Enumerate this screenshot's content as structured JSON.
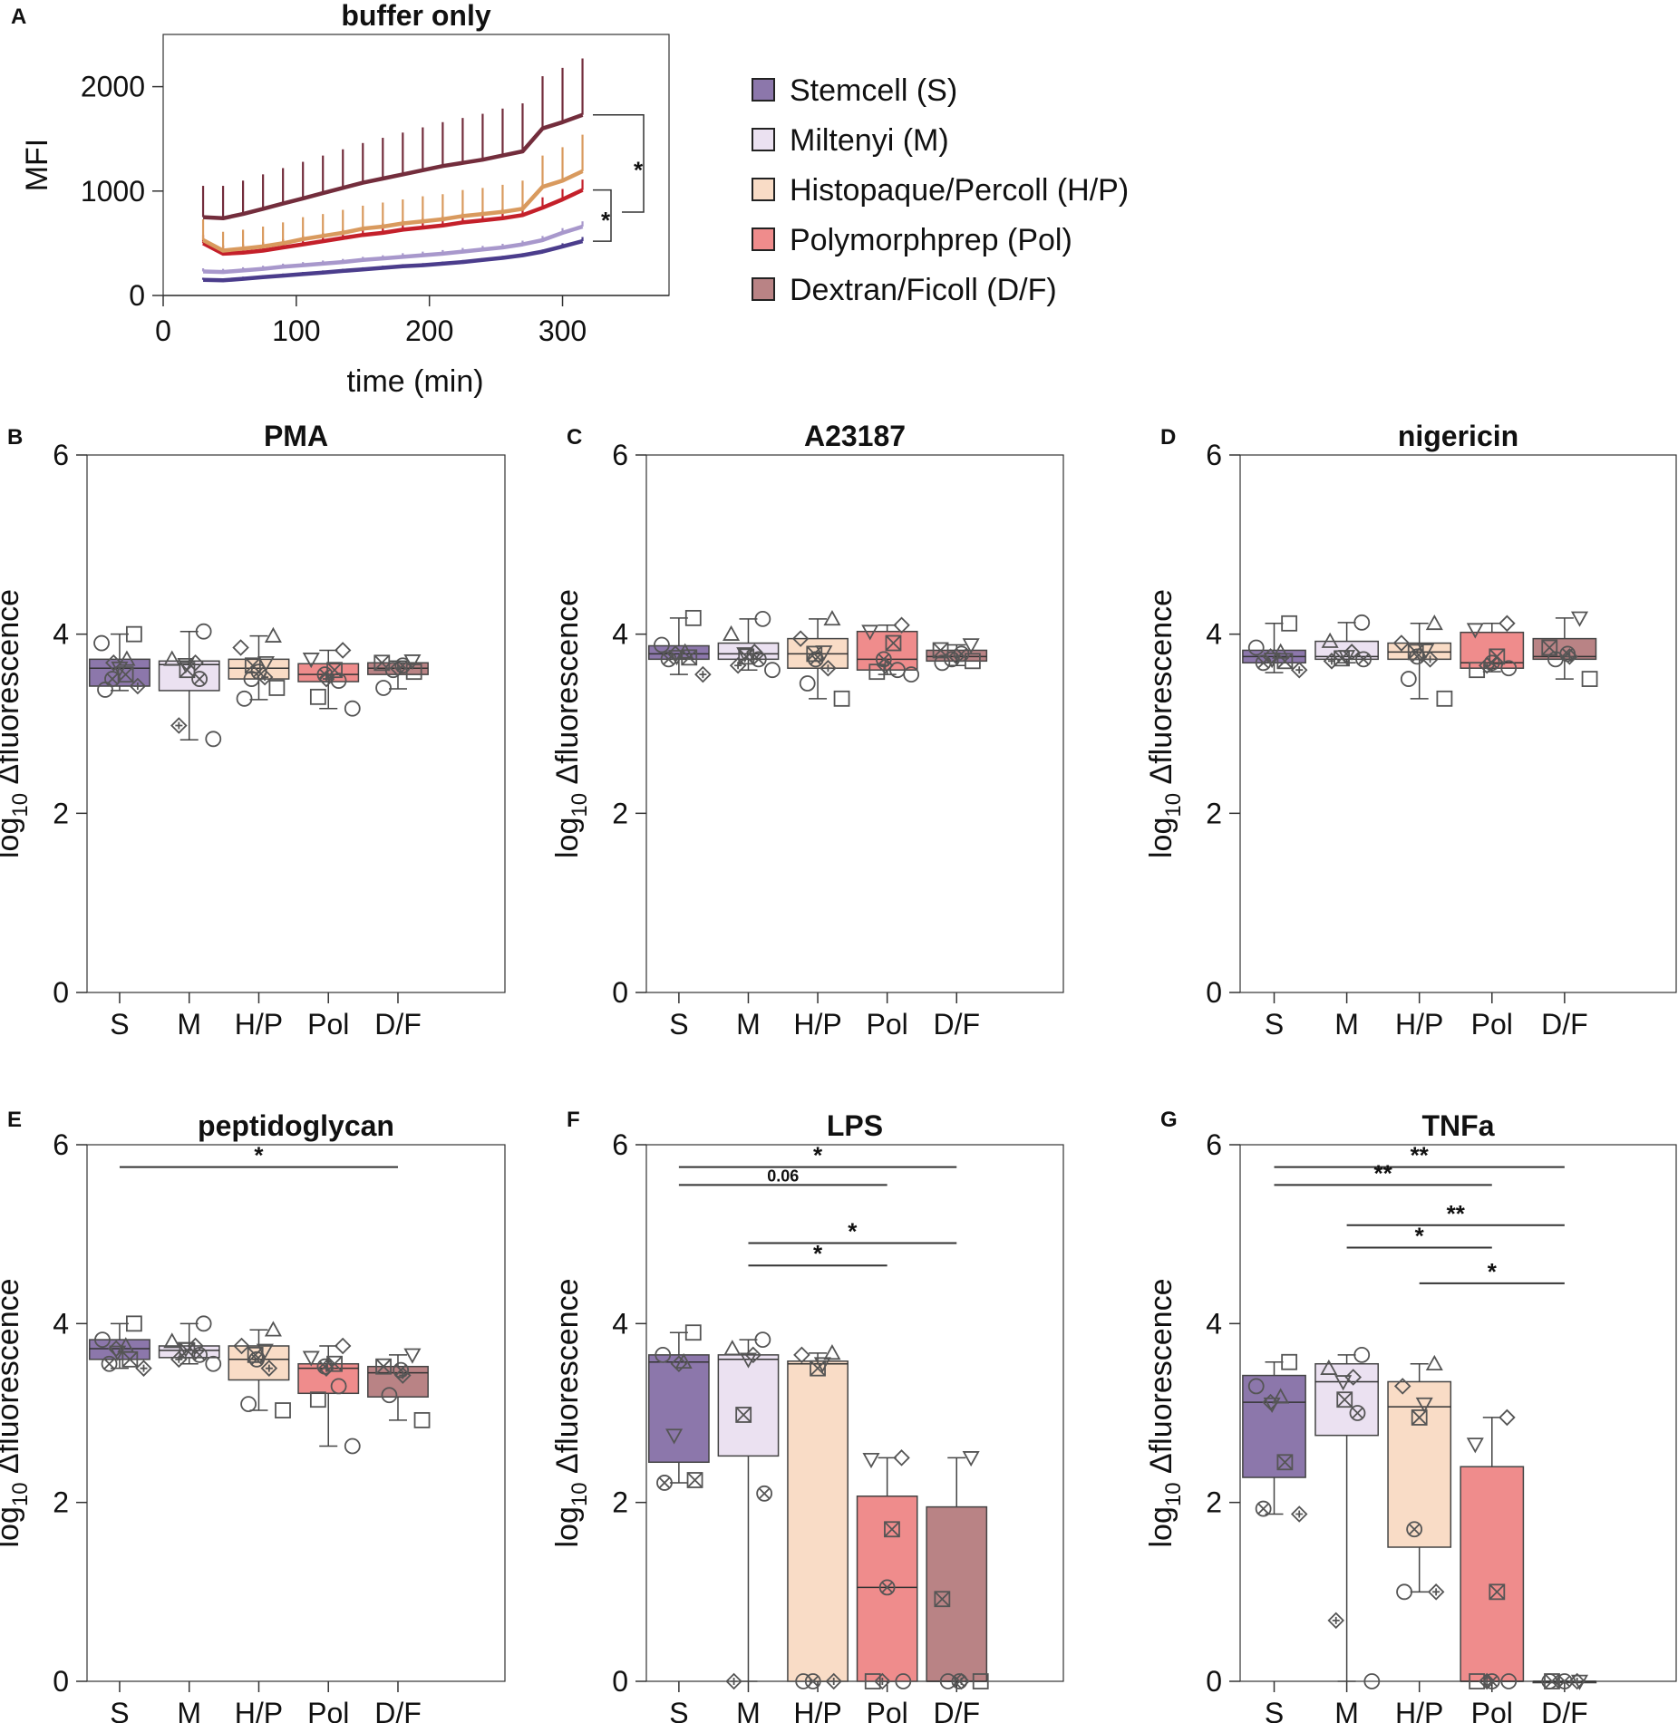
{
  "colors": {
    "S": "#8c77ab",
    "M": "#ebe1f1",
    "HP": "#f9dcc6",
    "Pol": "#ef8c8c",
    "DF": "#b98385",
    "line_S": "#4b3d8c",
    "line_M": "#a898cc",
    "line_HP": "#d99a5e",
    "line_Pol": "#c4202a",
    "line_DF": "#732d3c",
    "marker_stroke": "#555555"
  },
  "legend": [
    {
      "key": "S",
      "label": "Stemcell (S)"
    },
    {
      "key": "M",
      "label": "Miltenyi (M)"
    },
    {
      "key": "HP",
      "label": "Histopaque/Percoll (H/P)"
    },
    {
      "key": "Pol",
      "label": "Polymorphprep (Pol)"
    },
    {
      "key": "DF",
      "label": "Dextran/Ficoll (D/F)"
    }
  ],
  "chart_data": [
    {
      "panel": "A",
      "type": "line",
      "title": "buffer only",
      "xlabel": "time (min)",
      "ylabel": "MFI",
      "xlim": [
        0,
        380
      ],
      "ylim": [
        0,
        2500
      ],
      "xticks": [
        0,
        100,
        200,
        300
      ],
      "yticks": [
        0,
        1000,
        2000
      ],
      "x": [
        30,
        45,
        60,
        75,
        90,
        105,
        120,
        135,
        150,
        165,
        180,
        195,
        210,
        225,
        240,
        255,
        270,
        285,
        300,
        315
      ],
      "series": [
        {
          "name": "Stemcell (S)",
          "key": "S",
          "values": [
            150,
            145,
            160,
            175,
            190,
            205,
            220,
            235,
            250,
            265,
            280,
            290,
            305,
            320,
            340,
            360,
            385,
            420,
            470,
            520
          ],
          "err": [
            20,
            20,
            20,
            20,
            20,
            20,
            20,
            20,
            20,
            20,
            20,
            20,
            20,
            20,
            20,
            20,
            20,
            20,
            30,
            40
          ]
        },
        {
          "name": "Miltenyi (M)",
          "key": "M",
          "values": [
            230,
            225,
            240,
            255,
            275,
            290,
            305,
            320,
            340,
            355,
            370,
            385,
            400,
            420,
            440,
            460,
            490,
            530,
            600,
            660
          ],
          "err": [
            30,
            30,
            30,
            30,
            30,
            30,
            30,
            30,
            30,
            30,
            35,
            35,
            35,
            35,
            35,
            35,
            35,
            40,
            45,
            50
          ]
        },
        {
          "name": "Histopaque/Percoll (H/P)",
          "key": "HP",
          "values": [
            530,
            430,
            450,
            470,
            500,
            540,
            570,
            600,
            640,
            660,
            690,
            710,
            730,
            760,
            780,
            800,
            830,
            1040,
            1100,
            1190
          ],
          "err": [
            200,
            180,
            180,
            190,
            200,
            210,
            210,
            220,
            220,
            230,
            230,
            240,
            240,
            250,
            250,
            260,
            270,
            300,
            320,
            350
          ]
        },
        {
          "name": "Polymorphprep (Pol)",
          "key": "Pol",
          "values": [
            500,
            400,
            410,
            430,
            460,
            490,
            520,
            550,
            580,
            600,
            630,
            650,
            670,
            700,
            720,
            740,
            770,
            840,
            920,
            1010
          ],
          "err": [
            80,
            80,
            80,
            80,
            80,
            80,
            80,
            80,
            80,
            90,
            90,
            90,
            90,
            90,
            90,
            90,
            90,
            100,
            100,
            100
          ]
        },
        {
          "name": "Dextran/Ficoll (D/F)",
          "key": "DF",
          "values": [
            750,
            740,
            780,
            830,
            880,
            930,
            980,
            1030,
            1080,
            1120,
            1160,
            1200,
            1240,
            1270,
            1300,
            1340,
            1380,
            1600,
            1660,
            1730
          ],
          "err": [
            300,
            310,
            320,
            330,
            340,
            350,
            360,
            370,
            380,
            390,
            400,
            410,
            420,
            430,
            440,
            450,
            460,
            500,
            520,
            540
          ]
        }
      ],
      "significance": [
        "*",
        "*"
      ]
    },
    {
      "panel": "B",
      "type": "box",
      "title": "PMA",
      "ylabel": "log10 Δfluorescence",
      "categories": [
        "S",
        "M",
        "H/P",
        "Pol",
        "D/F"
      ],
      "ylim": [
        0,
        6
      ],
      "yticks": [
        0,
        2,
        4,
        6
      ],
      "boxes": [
        {
          "min": 3.37,
          "q1": 3.42,
          "median": 3.62,
          "q3": 3.72,
          "max": 4.0,
          "points": [
            4.0,
            3.9,
            3.72,
            3.68,
            3.62,
            3.55,
            3.5,
            3.42,
            3.38
          ]
        },
        {
          "min": 2.82,
          "q1": 3.37,
          "median": 3.66,
          "q3": 3.7,
          "max": 4.03,
          "points": [
            4.03,
            3.72,
            3.68,
            3.66,
            3.6,
            3.5,
            2.98,
            2.83
          ]
        },
        {
          "min": 3.27,
          "q1": 3.5,
          "median": 3.62,
          "q3": 3.72,
          "max": 3.98,
          "points": [
            3.98,
            3.85,
            3.68,
            3.65,
            3.58,
            3.52,
            3.5,
            3.4,
            3.28
          ]
        },
        {
          "min": 3.17,
          "q1": 3.47,
          "median": 3.55,
          "q3": 3.67,
          "max": 3.82,
          "points": [
            3.82,
            3.72,
            3.6,
            3.55,
            3.5,
            3.48,
            3.3,
            3.17
          ]
        },
        {
          "min": 3.39,
          "q1": 3.55,
          "median": 3.62,
          "q3": 3.68,
          "max": 3.7,
          "points": [
            3.7,
            3.68,
            3.65,
            3.62,
            3.6,
            3.58,
            3.4
          ]
        }
      ],
      "brackets": []
    },
    {
      "panel": "C",
      "type": "box",
      "title": "A23187",
      "ylabel": "log10 Δfluorescence",
      "categories": [
        "S",
        "M",
        "H/P",
        "Pol",
        "D/F"
      ],
      "ylim": [
        0,
        6
      ],
      "yticks": [
        0,
        2,
        4,
        6
      ],
      "boxes": [
        {
          "min": 3.55,
          "q1": 3.72,
          "median": 3.78,
          "q3": 3.87,
          "max": 4.18,
          "points": [
            4.18,
            3.88,
            3.8,
            3.78,
            3.75,
            3.74,
            3.72,
            3.55
          ]
        },
        {
          "min": 3.6,
          "q1": 3.72,
          "median": 3.78,
          "q3": 3.9,
          "max": 4.17,
          "points": [
            4.17,
            4.0,
            3.8,
            3.78,
            3.75,
            3.72,
            3.65,
            3.6
          ]
        },
        {
          "min": 3.28,
          "q1": 3.62,
          "median": 3.78,
          "q3": 3.95,
          "max": 4.17,
          "points": [
            4.17,
            3.95,
            3.8,
            3.78,
            3.72,
            3.62,
            3.45,
            3.28
          ]
        },
        {
          "min": 3.55,
          "q1": 3.6,
          "median": 3.72,
          "q3": 4.03,
          "max": 4.1,
          "points": [
            4.1,
            4.03,
            3.9,
            3.72,
            3.65,
            3.6,
            3.58,
            3.55
          ]
        },
        {
          "min": 3.65,
          "q1": 3.7,
          "median": 3.75,
          "q3": 3.82,
          "max": 3.88,
          "points": [
            3.88,
            3.82,
            3.78,
            3.75,
            3.72,
            3.7,
            3.68
          ]
        }
      ],
      "brackets": []
    },
    {
      "panel": "D",
      "type": "box",
      "title": "nigericin",
      "ylabel": "log10 Δfluorescence",
      "categories": [
        "S",
        "M",
        "H/P",
        "Pol",
        "D/F"
      ],
      "ylim": [
        0,
        6
      ],
      "yticks": [
        0,
        2,
        4,
        6
      ],
      "boxes": [
        {
          "min": 3.57,
          "q1": 3.68,
          "median": 3.75,
          "q3": 3.82,
          "max": 4.12,
          "points": [
            4.12,
            3.85,
            3.8,
            3.75,
            3.72,
            3.7,
            3.68,
            3.6
          ]
        },
        {
          "min": 3.68,
          "q1": 3.72,
          "median": 3.75,
          "q3": 3.92,
          "max": 4.13,
          "points": [
            4.13,
            3.92,
            3.8,
            3.75,
            3.73,
            3.72,
            3.7
          ]
        },
        {
          "min": 3.28,
          "q1": 3.72,
          "median": 3.8,
          "q3": 3.9,
          "max": 4.12,
          "points": [
            4.12,
            3.9,
            3.82,
            3.8,
            3.75,
            3.72,
            3.5,
            3.28
          ]
        },
        {
          "min": 3.58,
          "q1": 3.62,
          "median": 3.68,
          "q3": 4.02,
          "max": 4.12,
          "points": [
            4.12,
            4.05,
            3.75,
            3.68,
            3.65,
            3.62,
            3.6
          ]
        },
        {
          "min": 3.5,
          "q1": 3.72,
          "median": 3.75,
          "q3": 3.95,
          "max": 4.18,
          "points": [
            4.18,
            3.85,
            3.78,
            3.75,
            3.72,
            3.5
          ]
        }
      ],
      "brackets": []
    },
    {
      "panel": "E",
      "type": "box",
      "title": "peptidoglycan",
      "ylabel": "log10 Δfluorescence",
      "categories": [
        "S",
        "M",
        "H/P",
        "Pol",
        "D/F"
      ],
      "ylim": [
        0,
        6
      ],
      "yticks": [
        0,
        2,
        4,
        6
      ],
      "boxes": [
        {
          "min": 3.5,
          "q1": 3.6,
          "median": 3.72,
          "q3": 3.82,
          "max": 4.0,
          "points": [
            4.0,
            3.82,
            3.75,
            3.72,
            3.68,
            3.6,
            3.55,
            3.5
          ]
        },
        {
          "min": 3.55,
          "q1": 3.62,
          "median": 3.7,
          "q3": 3.75,
          "max": 4.0,
          "points": [
            4.0,
            3.8,
            3.75,
            3.72,
            3.7,
            3.65,
            3.6,
            3.55
          ]
        },
        {
          "min": 3.03,
          "q1": 3.37,
          "median": 3.6,
          "q3": 3.75,
          "max": 3.93,
          "points": [
            3.93,
            3.75,
            3.7,
            3.65,
            3.6,
            3.5,
            3.1,
            3.03
          ]
        },
        {
          "min": 2.63,
          "q1": 3.22,
          "median": 3.5,
          "q3": 3.55,
          "max": 3.75,
          "points": [
            3.75,
            3.62,
            3.55,
            3.52,
            3.5,
            3.3,
            3.15,
            2.63
          ]
        },
        {
          "min": 2.92,
          "q1": 3.18,
          "median": 3.45,
          "q3": 3.52,
          "max": 3.65,
          "points": [
            3.65,
            3.52,
            3.48,
            3.42,
            3.2,
            2.92
          ]
        }
      ],
      "brackets": [
        {
          "from": 0,
          "to": 4,
          "y": 5.75,
          "label": "*"
        }
      ]
    },
    {
      "panel": "F",
      "type": "box",
      "title": "LPS",
      "ylabel": "log10 Δfluorescence",
      "categories": [
        "S",
        "M",
        "H/P",
        "Pol",
        "D/F"
      ],
      "ylim": [
        0,
        6
      ],
      "yticks": [
        0,
        2,
        4,
        6
      ],
      "boxes": [
        {
          "min": 2.22,
          "q1": 2.45,
          "median": 3.57,
          "q3": 3.65,
          "max": 3.9,
          "points": [
            3.9,
            3.65,
            3.57,
            3.55,
            2.75,
            2.25,
            2.22
          ]
        },
        {
          "min": 0.0,
          "q1": 2.52,
          "median": 3.6,
          "q3": 3.65,
          "max": 3.82,
          "points": [
            3.82,
            3.72,
            3.65,
            3.6,
            2.98,
            2.1,
            0.0
          ]
        },
        {
          "min": 0.0,
          "q1": 0.0,
          "median": 3.55,
          "q3": 3.58,
          "max": 3.67,
          "points": [
            3.67,
            3.65,
            3.55,
            3.5,
            0.0,
            0.0,
            0.0
          ]
        },
        {
          "min": 0.0,
          "q1": 0.0,
          "median": 1.05,
          "q3": 2.07,
          "max": 2.5,
          "points": [
            2.5,
            2.48,
            1.7,
            1.05,
            0.0,
            0.0,
            0.0
          ]
        },
        {
          "min": 0.0,
          "q1": 0.0,
          "median": 0.0,
          "q3": 1.95,
          "max": 2.5,
          "points": [
            2.5,
            0.92,
            0.0,
            0.0,
            0.0,
            0.0
          ]
        }
      ],
      "brackets": [
        {
          "from": 0,
          "to": 4,
          "y": 5.75,
          "label": "*"
        },
        {
          "from": 0,
          "to": 3,
          "y": 5.55,
          "label": "0.06"
        },
        {
          "from": 1,
          "to": 4,
          "y": 4.9,
          "label": "*"
        },
        {
          "from": 1,
          "to": 3,
          "y": 4.65,
          "label": "*"
        }
      ]
    },
    {
      "panel": "G",
      "type": "box",
      "title": "TNFa",
      "ylabel": "log10 Δfluorescence",
      "categories": [
        "S",
        "M",
        "H/P",
        "Pol",
        "D/F"
      ],
      "ylim": [
        0,
        6
      ],
      "yticks": [
        0,
        2,
        4,
        6
      ],
      "boxes": [
        {
          "min": 1.87,
          "q1": 2.28,
          "median": 3.12,
          "q3": 3.42,
          "max": 3.57,
          "points": [
            3.57,
            3.3,
            3.18,
            3.12,
            3.1,
            2.45,
            1.93,
            1.87
          ]
        },
        {
          "min": 0.0,
          "q1": 2.75,
          "median": 3.35,
          "q3": 3.55,
          "max": 3.65,
          "points": [
            3.65,
            3.5,
            3.4,
            3.35,
            3.15,
            3.0,
            0.68,
            0.0
          ]
        },
        {
          "min": 1.0,
          "q1": 1.5,
          "median": 3.07,
          "q3": 3.35,
          "max": 3.55,
          "points": [
            3.55,
            3.3,
            3.1,
            2.95,
            1.7,
            1.0,
            1.0
          ]
        },
        {
          "min": 0.0,
          "q1": 0.0,
          "median": 0.0,
          "q3": 2.4,
          "max": 2.95,
          "points": [
            2.95,
            2.65,
            1.0,
            0.0,
            0.0,
            0.0,
            0.0
          ]
        },
        {
          "min": 0.0,
          "q1": 0.0,
          "median": 0.0,
          "q3": 0.0,
          "max": 0.0,
          "points": [
            0.0,
            0.0,
            0.0,
            0.0,
            0.0
          ]
        }
      ],
      "brackets": [
        {
          "from": 0,
          "to": 4,
          "y": 5.75,
          "label": "**"
        },
        {
          "from": 0,
          "to": 3,
          "y": 5.55,
          "label": "**"
        },
        {
          "from": 1,
          "to": 4,
          "y": 5.1,
          "label": "**"
        },
        {
          "from": 1,
          "to": 3,
          "y": 4.85,
          "label": "*"
        },
        {
          "from": 2,
          "to": 4,
          "y": 4.45,
          "label": "*"
        }
      ]
    }
  ]
}
